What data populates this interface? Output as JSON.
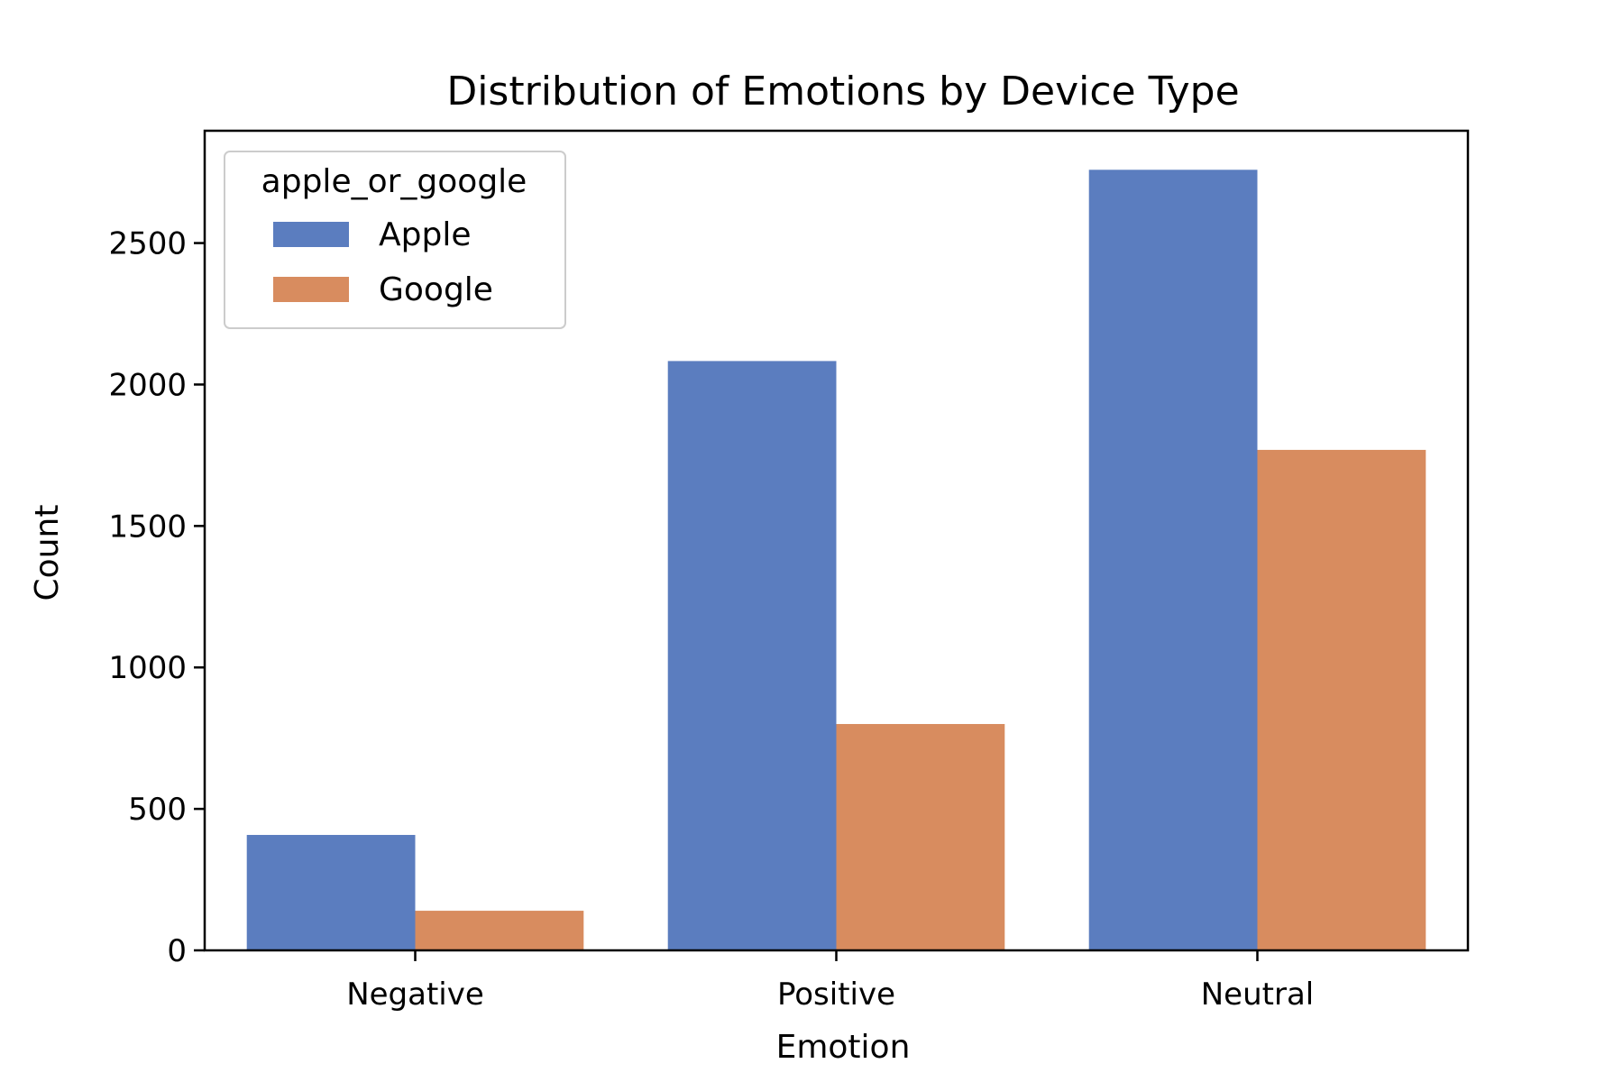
{
  "chart_data": {
    "type": "bar",
    "title": "Distribution of Emotions by Device Type",
    "xlabel": "Emotion",
    "ylabel": "Count",
    "categories": [
      "Negative",
      "Positive",
      "Neutral"
    ],
    "series": [
      {
        "name": "Apple",
        "values": [
          408,
          2083,
          2759
        ],
        "color": "#5b7dbf"
      },
      {
        "name": "Google",
        "values": [
          140,
          800,
          1769
        ],
        "color": "#d88c5f"
      }
    ],
    "ylim": [
      0,
      2897
    ],
    "yticks": [
      0,
      500,
      1000,
      1500,
      2000,
      2500
    ],
    "legend": {
      "title": "apple_or_google",
      "placement": "top-left"
    },
    "grid": false
  }
}
